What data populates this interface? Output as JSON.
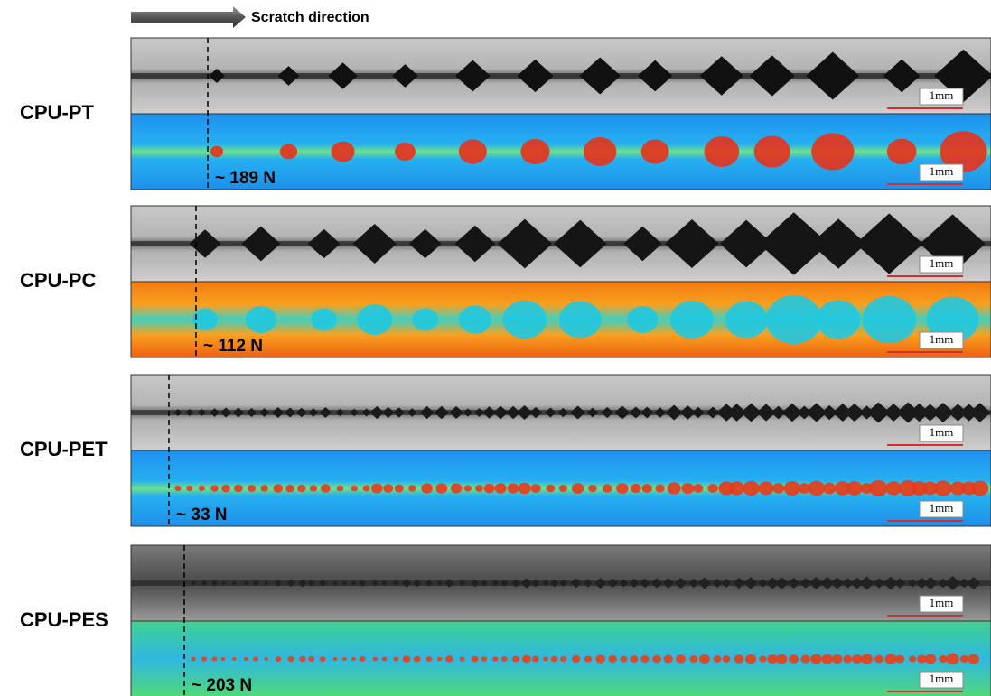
{
  "header": {
    "arrow_label": "Scratch direction"
  },
  "panels": [
    {
      "label": "CPU-PT",
      "load": "~ 189 N",
      "scale_bars": [
        "1mm",
        "1mm"
      ]
    },
    {
      "label": "CPU-PC",
      "load": "~ 112 N",
      "scale_bars": [
        "1mm",
        "1mm"
      ]
    },
    {
      "label": "CPU-PET",
      "load": "~ 33 N",
      "scale_bars": [
        "1mm",
        "1mm"
      ]
    },
    {
      "label": "CPU-PES",
      "load": "~ 203 N",
      "scale_bars": [
        "1mm",
        "1mm"
      ]
    }
  ]
}
